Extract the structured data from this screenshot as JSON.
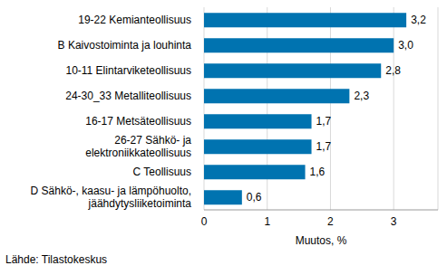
{
  "chart_data": {
    "type": "bar",
    "orientation": "horizontal",
    "categories": [
      "19-22 Kemianteollisuus",
      "B Kaivostoiminta ja louhinta",
      "10-11 Elintarviketeollisuus",
      "24-30_33 Metalliteollisuus",
      "16-17 Metsäteollisuus",
      "26-27 Sähkö- ja elektroniikkateollisuus",
      "C Teollisuus",
      "D Sähkö-, kaasu- ja lämpöhuolto, jäähdytysliiketoiminta"
    ],
    "values": [
      3.2,
      3.0,
      2.8,
      2.3,
      1.7,
      1.7,
      1.6,
      0.6
    ],
    "value_labels": [
      "3,2",
      "3,0",
      "2,8",
      "2,3",
      "1,7",
      "1,7",
      "1,6",
      "0,6"
    ],
    "data_labels": true,
    "color": "#0073b0",
    "x_label": "Muutos, %",
    "xlim": [
      0,
      3.7
    ],
    "xticks": [
      0,
      1,
      2,
      3
    ],
    "grid": true,
    "source": "Lähde: Tilastokeskus"
  }
}
